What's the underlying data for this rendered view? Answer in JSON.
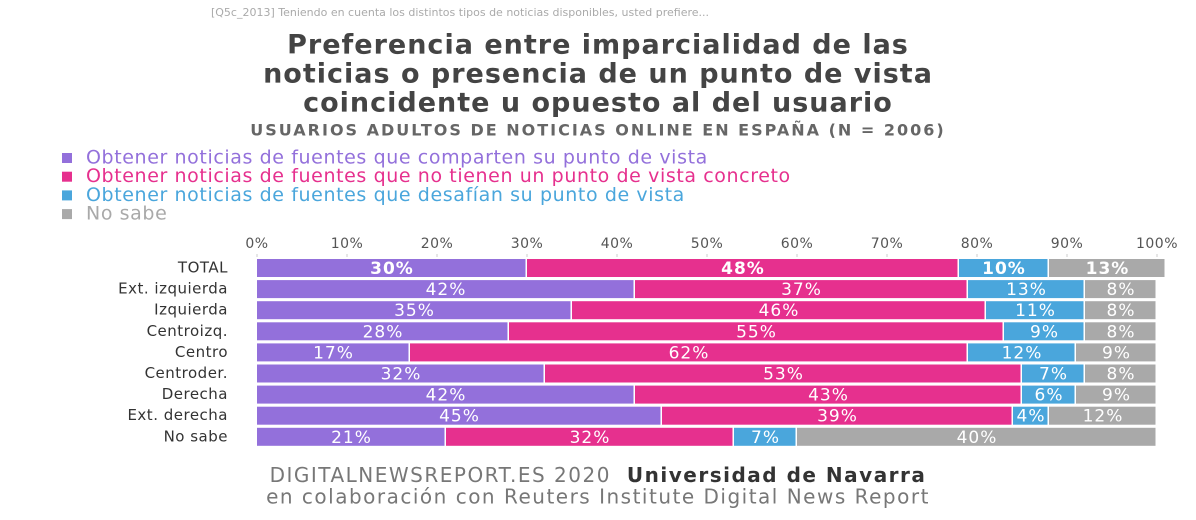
{
  "chart_data": {
    "type": "stacked-barh",
    "note": "[Q5c_2013] Teniendo en cuenta los distintos tipos de noticias disponibles, usted prefiere...",
    "title": [
      "Preferencia entre imparcialidad de las",
      "noticias o presencia de un punto de vista",
      "coincidente u opuesto al del usuario"
    ],
    "subtitle": "USUARIOS ADULTOS DE NOTICIAS ONLINE EN ESPAÑA (N = 2006)",
    "categories": [
      "TOTAL",
      "Ext. izquierda",
      "Izquierda",
      "Centroizq.",
      "Centro",
      "Centroder.",
      "Derecha",
      "Ext. derecha",
      "No sabe"
    ],
    "series": [
      {
        "name": "Obtener noticias de fuentes que comparten su punto de vista",
        "color": "#9370db",
        "values": [
          30,
          42,
          35,
          28,
          17,
          32,
          42,
          45,
          21
        ],
        "value_labels": [
          "30%",
          "42%",
          "35%",
          "28%",
          "17%",
          "32%",
          "42%",
          "45%",
          "21%"
        ]
      },
      {
        "name": "Obtener noticias de fuentes que no tienen un punto de vista concreto",
        "color": "#e6308e",
        "values": [
          48,
          37,
          46,
          55,
          62,
          53,
          43,
          39,
          32
        ],
        "value_labels": [
          "48%",
          "37%",
          "46%",
          "55%",
          "62%",
          "53%",
          "43%",
          "39%",
          "32%"
        ]
      },
      {
        "name": "Obtener noticias de fuentes que desafían su punto de vista",
        "color": "#4aa6dc",
        "values": [
          10,
          13,
          11,
          9,
          12,
          7,
          6,
          4,
          7
        ],
        "value_labels": [
          "10%",
          "13%",
          "11%",
          "9%",
          "12%",
          "7%",
          "6%",
          "4%",
          "7%"
        ]
      },
      {
        "name": "No sabe",
        "color": "#a9a9a9",
        "values": [
          13,
          8,
          8,
          8,
          9,
          8,
          9,
          12,
          40
        ],
        "value_labels": [
          "13%",
          "8%",
          "8%",
          "8%",
          "9%",
          "8%",
          "9%",
          "12%",
          "40%"
        ]
      }
    ],
    "xlim": [
      0,
      100
    ],
    "xticks": [
      {
        "value": 0,
        "label": "0%"
      },
      {
        "value": 10,
        "label": "10%"
      },
      {
        "value": 20,
        "label": "20%"
      },
      {
        "value": 30,
        "label": "30%"
      },
      {
        "value": 40,
        "label": "40%"
      },
      {
        "value": 50,
        "label": "50%"
      },
      {
        "value": 60,
        "label": "60%"
      },
      {
        "value": 70,
        "label": "70%"
      },
      {
        "value": 80,
        "label": "80%"
      },
      {
        "value": 90,
        "label": "90%"
      },
      {
        "value": 100,
        "label": "100%"
      }
    ],
    "footer": {
      "site": "DIGITALNEWSREPORT.ES 2020",
      "org": "Universidad de Navarra",
      "credit": "en colaboración con Reuters Institute Digital News Report"
    }
  }
}
